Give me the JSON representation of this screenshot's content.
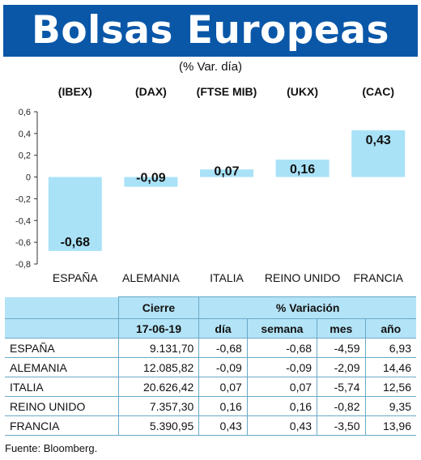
{
  "title": "Bolsas Europeas",
  "subtitle": "(% Var. día)",
  "chart_data": {
    "type": "bar",
    "categories": [
      "ESPAÑA",
      "ALEMANIA",
      "ITALIA",
      "REINO UNIDO",
      "FRANCIA"
    ],
    "indices": [
      "(IBEX)",
      "(DAX)",
      "(FTSE MIB)",
      "(UKX)",
      "(CAC)"
    ],
    "values": [
      -0.68,
      -0.09,
      0.07,
      0.16,
      0.43
    ],
    "value_labels": [
      "-0,68",
      "-0,09",
      "0,07",
      "0,16",
      "0,43"
    ],
    "ylim": [
      -0.8,
      0.6
    ],
    "yticks": [
      0.6,
      0.4,
      0.2,
      0,
      -0.2,
      -0.4,
      -0.6,
      -0.8
    ],
    "ytick_labels": [
      "0,6",
      "0,4",
      "0,2",
      "0",
      "-0,2",
      "-0,4",
      "-0,6",
      "-0,8"
    ],
    "bar_color": "#a9e2f7",
    "grid": false
  },
  "table": {
    "header_cierre": "Cierre",
    "header_variacion": "% Variación",
    "date": "17-06-19",
    "col_dia": "día",
    "col_semana": "semana",
    "col_mes": "mes",
    "col_ano": "año",
    "rows": [
      {
        "country": "ESPAÑA",
        "cierre": "9.131,70",
        "dia": "-0,68",
        "semana": "-0,68",
        "mes": "-4,59",
        "ano": "6,93"
      },
      {
        "country": "ALEMANIA",
        "cierre": "12.085,82",
        "dia": "-0,09",
        "semana": "-0,09",
        "mes": "-2,09",
        "ano": "14,46"
      },
      {
        "country": "ITALIA",
        "cierre": "20.626,42",
        "dia": "0,07",
        "semana": "0,07",
        "mes": "-5,74",
        "ano": "12,56"
      },
      {
        "country": "REINO UNIDO",
        "cierre": "7.357,30",
        "dia": "0,16",
        "semana": "0,16",
        "mes": "-0,82",
        "ano": "9,35"
      },
      {
        "country": "FRANCIA",
        "cierre": "5.390,95",
        "dia": "0,43",
        "semana": "0,43",
        "mes": "-3,50",
        "ano": "13,96"
      }
    ]
  },
  "source": "Fuente: Bloomberg.",
  "colors": {
    "banner": "#0a57a8",
    "header_fill": "#b3e3f6",
    "bar": "#a9e2f7"
  }
}
